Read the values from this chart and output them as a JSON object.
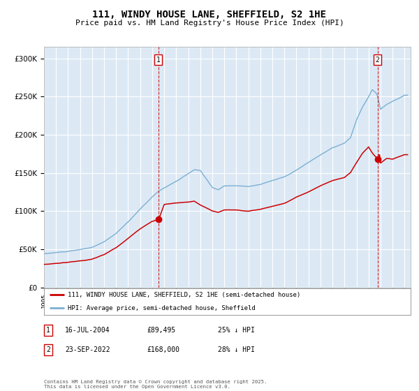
{
  "title": "111, WINDY HOUSE LANE, SHEFFIELD, S2 1HE",
  "subtitle": "Price paid vs. HM Land Registry's House Price Index (HPI)",
  "title_fontsize": 10,
  "subtitle_fontsize": 8,
  "background_color": "#ffffff",
  "plot_bg_color": "#dce9f5",
  "grid_color": "#ffffff",
  "hpi_color": "#7bafd4",
  "price_color": "#cc0000",
  "annotation_box_color": "#cc0000",
  "annotation1": {
    "label": "1",
    "date_str": "16-JUL-2004",
    "price": 89495,
    "pct": "25% ↓ HPI",
    "year": 2004.54
  },
  "annotation2": {
    "label": "2",
    "date_str": "23-SEP-2022",
    "price": 168000,
    "pct": "28% ↓ HPI",
    "year": 2022.72
  },
  "legend_line1": "111, WINDY HOUSE LANE, SHEFFIELD, S2 1HE (semi-detached house)",
  "legend_line2": "HPI: Average price, semi-detached house, Sheffield",
  "footer": "Contains HM Land Registry data © Crown copyright and database right 2025.\nThis data is licensed under the Open Government Licence v3.0.",
  "ytick_values": [
    0,
    50000,
    100000,
    150000,
    200000,
    250000,
    300000
  ],
  "ylim": [
    0,
    315000
  ],
  "xlim_start": 1995.0,
  "xlim_end": 2025.5
}
